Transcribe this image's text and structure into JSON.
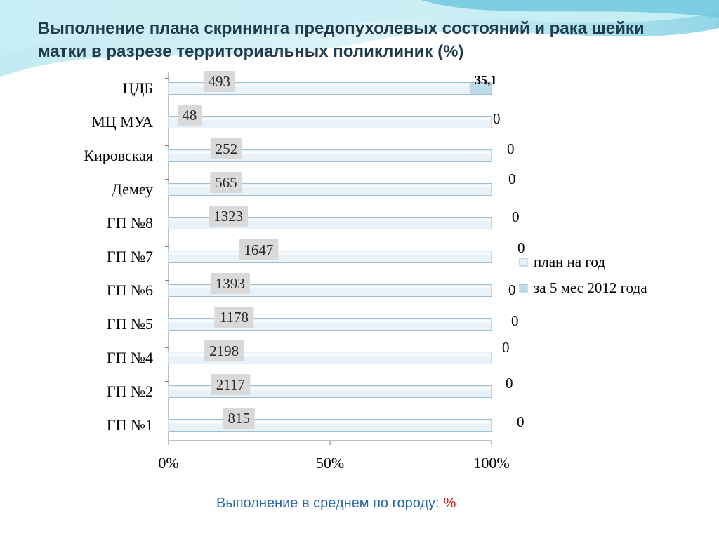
{
  "slide": {
    "title": "Выполнение плана скрининга предопухолевых состояний и рака шейки матки в разрезе территориальных поликлиник (%)",
    "footer_text": "Выполнение в среднем по городу:",
    "footer_value": "%"
  },
  "colors": {
    "title": "#1f3a4a",
    "bar_fill": "#e8f2f8",
    "bar_stroke": "#9cbfd6",
    "plan_label_bg": "#d9d9d9",
    "footer_text": "#2565a8",
    "footer_value": "#d21e1e",
    "header_wave": "#9ad8e8"
  },
  "chart_data": {
    "type": "bar",
    "orientation": "horizontal",
    "stacked": "percent",
    "categories": [
      "ЦДБ",
      "МЦ МУА",
      "Кировская",
      "Демеу",
      "ГП №8",
      "ГП  №7",
      "ГП №6",
      "ГП №5",
      "ГП №4",
      "ГП №2",
      "ГП №1"
    ],
    "series": [
      {
        "name": "план на год",
        "values": [
          493,
          48,
          252,
          565,
          1323,
          1647,
          1393,
          1178,
          2198,
          2117,
          815
        ],
        "labels": [
          "493",
          "48",
          "252",
          "565",
          "1323",
          "1647",
          "1393",
          "1178",
          "2198",
          "2117",
          "815"
        ]
      },
      {
        "name": "за 5 мес 2012 года",
        "values": [
          35.1,
          0,
          0,
          0,
          0,
          0,
          0,
          0,
          0,
          0,
          0
        ],
        "labels": [
          "35,1",
          "0",
          "0",
          "0",
          "0",
          "0",
          "0",
          "0",
          "0",
          "0",
          "0"
        ]
      }
    ],
    "x_ticks": [
      "0%",
      "50%",
      "100%"
    ],
    "xlim": [
      0,
      100
    ],
    "legend": "right",
    "grid": false
  }
}
